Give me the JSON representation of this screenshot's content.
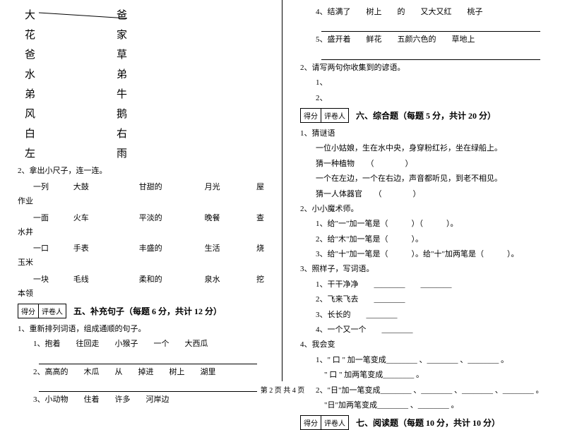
{
  "left": {
    "pairs": [
      {
        "l": "大",
        "r": "爸"
      },
      {
        "l": "花",
        "r": "家"
      },
      {
        "l": "爸",
        "r": "草"
      },
      {
        "l": "水",
        "r": "弟"
      },
      {
        "l": "弟",
        "r": "牛"
      },
      {
        "l": "风",
        "r": "鹅"
      },
      {
        "l": "白",
        "r": "右"
      },
      {
        "l": "左",
        "r": "雨"
      }
    ],
    "q2": "2、拿出小尺子，连一连。",
    "rows": [
      {
        "c1": "一列",
        "c2": "大鼓",
        "c3": "甘甜的",
        "c4": "月光",
        "c5": "屋"
      },
      {
        "c1": "一面",
        "c2": "火车",
        "c3": "平淡的",
        "c4": "晚餐",
        "c5": "查"
      },
      {
        "c1": "一口",
        "c2": "手表",
        "c3": "丰盛的",
        "c4": "生活",
        "c5": "烧"
      },
      {
        "c1": "一块",
        "c2": "毛线",
        "c3": "柔和的",
        "c4": "泉水",
        "c5": "挖"
      }
    ],
    "rowLabels": [
      "作业",
      "水井",
      "玉米",
      "本领"
    ],
    "sec5": "五、补充句子（每题 6 分，共计 12 分）",
    "q5_1": "1、重新排列词语，组成通顺的句子。",
    "q5_1_1": "1、抱着　　往回走　　小猴子　　一个　　大西瓜",
    "q5_1_2": "2、高高的　　木瓜　　从　　掉进　　树上　　湖里",
    "q5_1_3": "3、小动物　　住着　　许多　　河岸边",
    "scoreHeaders": [
      "得分",
      "评卷人"
    ]
  },
  "right": {
    "q4": "4、结满了　　树上　　的　　又大又红　　桃子",
    "q5": "5、盛开着　　鲜花　　五颜六色的　　草地上",
    "q2": "2、请写两句你收集到的谚语。",
    "q2_1": "1、",
    "q2_2": "2、",
    "sec6": "六、综合题（每题 5 分，共计 20 分）",
    "q6_1": "1、猜谜语",
    "q6_1a": "一位小姑娘，生在水中央，身穿粉红衫，坐在绿船上。",
    "q6_1b": "猜一种植物　　（　　　　）",
    "q6_1c": "一个在左边，一个在右边，声音都听见，到老不相见。",
    "q6_1d": "猜一人体器官　　（　　　　）",
    "q6_2": "2、小小魔术师。",
    "q6_2_1": "1、给\"一\"加一笔是（　　　）（　　　）。",
    "q6_2_2": "2、给\"木\"加一笔是（　　　）。",
    "q6_2_3": "3、给\"十\"加一笔是（　　　）。给\"十\"加两笔是（　　　）。",
    "q6_3": "3、照样子，写词语。",
    "q6_3_1": "1、干干净净　　________　　________",
    "q6_3_2": "2、飞来飞去　　________",
    "q6_3_3": "3、长长的　　________",
    "q6_3_4": "4、一个又一个　　________",
    "q6_4": "4、我会变",
    "q6_4_1": "1、\" 口 \" 加一笔变成________ 、________ 、________ 。",
    "q6_4_1b": "\" 口 \" 加两笔变成________ 。",
    "q6_4_2": "2、\"日\"加一笔变成________ 、________ 、________ 、________ 。",
    "q6_4_2b": "\"日\"加两笔变成________ 、________ 。",
    "sec7": "七、阅读题（每题 10 分，共计 10 分）",
    "scoreHeaders": [
      "得分",
      "评卷人"
    ]
  },
  "footer": "第 2 页 共 4 页"
}
